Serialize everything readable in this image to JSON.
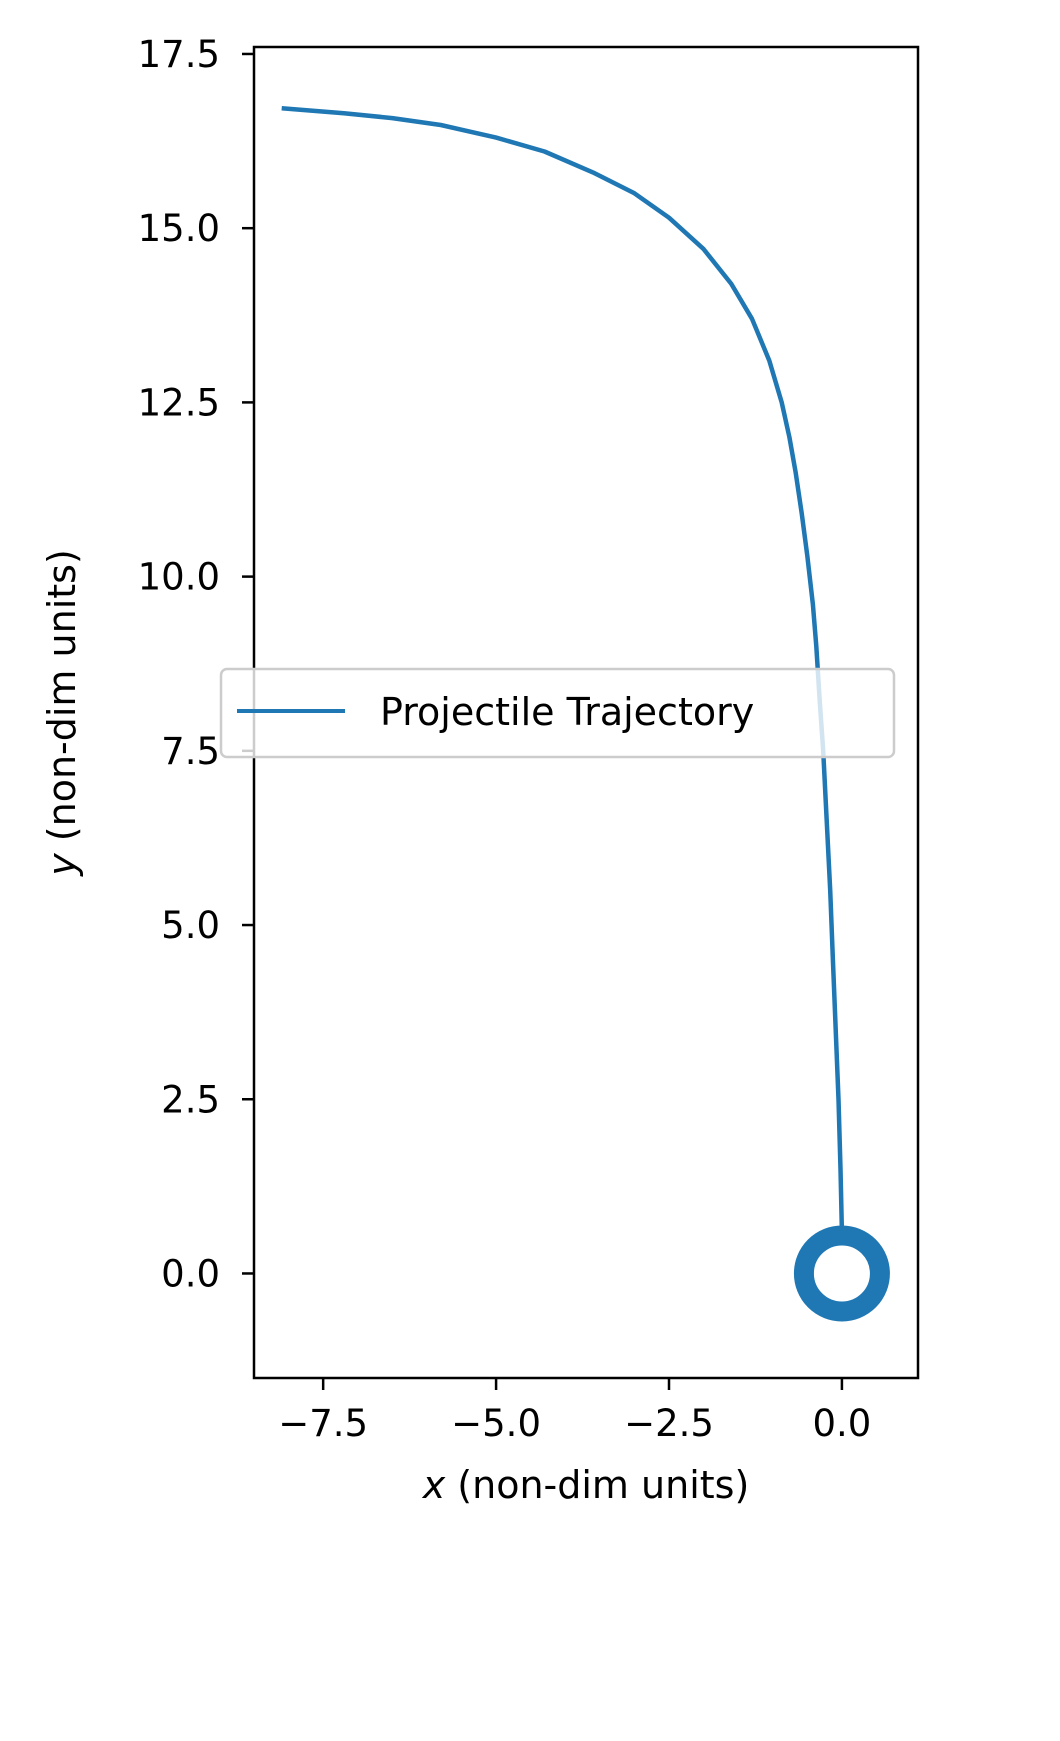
{
  "chart_data": {
    "type": "line",
    "xlabel": {
      "var": "x",
      "rest": " (non-dim units)"
    },
    "ylabel": {
      "var": "y",
      "rest": " (non-dim units)"
    },
    "xlim": [
      -8.5,
      1.1
    ],
    "ylim": [
      -1.5,
      17.6
    ],
    "xticks": [
      -7.5,
      -5.0,
      -2.5,
      0.0
    ],
    "xtick_labels": [
      "−7.5",
      "−5.0",
      "−2.5",
      "0.0"
    ],
    "yticks": [
      0.0,
      2.5,
      5.0,
      7.5,
      10.0,
      12.5,
      15.0,
      17.5
    ],
    "ytick_labels": [
      "0.0",
      "2.5",
      "5.0",
      "7.5",
      "10.0",
      "12.5",
      "15.0",
      "17.5"
    ],
    "grid": false,
    "legend": {
      "placement": "center-right"
    },
    "series": [
      {
        "name": "Projectile Trajectory",
        "color": "#1f77b4",
        "x": [
          0.0,
          -0.02,
          -0.05,
          -0.09,
          -0.13,
          -0.17,
          -0.22,
          -0.27,
          -0.32,
          -0.37,
          -0.42,
          -0.5,
          -0.58,
          -0.67,
          -0.76,
          -0.87,
          -1.05,
          -1.3,
          -1.6,
          -2.0,
          -2.5,
          -3.0,
          -3.6,
          -4.3,
          -5.0,
          -5.8,
          -6.5,
          -7.2,
          -8.1
        ],
        "y": [
          0.6,
          1.5,
          2.5,
          3.5,
          4.5,
          5.5,
          6.5,
          7.5,
          8.2,
          9.0,
          9.6,
          10.3,
          10.9,
          11.5,
          12.0,
          12.5,
          13.1,
          13.7,
          14.2,
          14.7,
          15.15,
          15.5,
          15.8,
          16.1,
          16.3,
          16.48,
          16.58,
          16.65,
          16.72
        ]
      }
    ],
    "markers": [
      {
        "type": "circle",
        "x": 0.0,
        "y": 0.0,
        "filled": false,
        "color": "#1f77b4"
      }
    ]
  }
}
